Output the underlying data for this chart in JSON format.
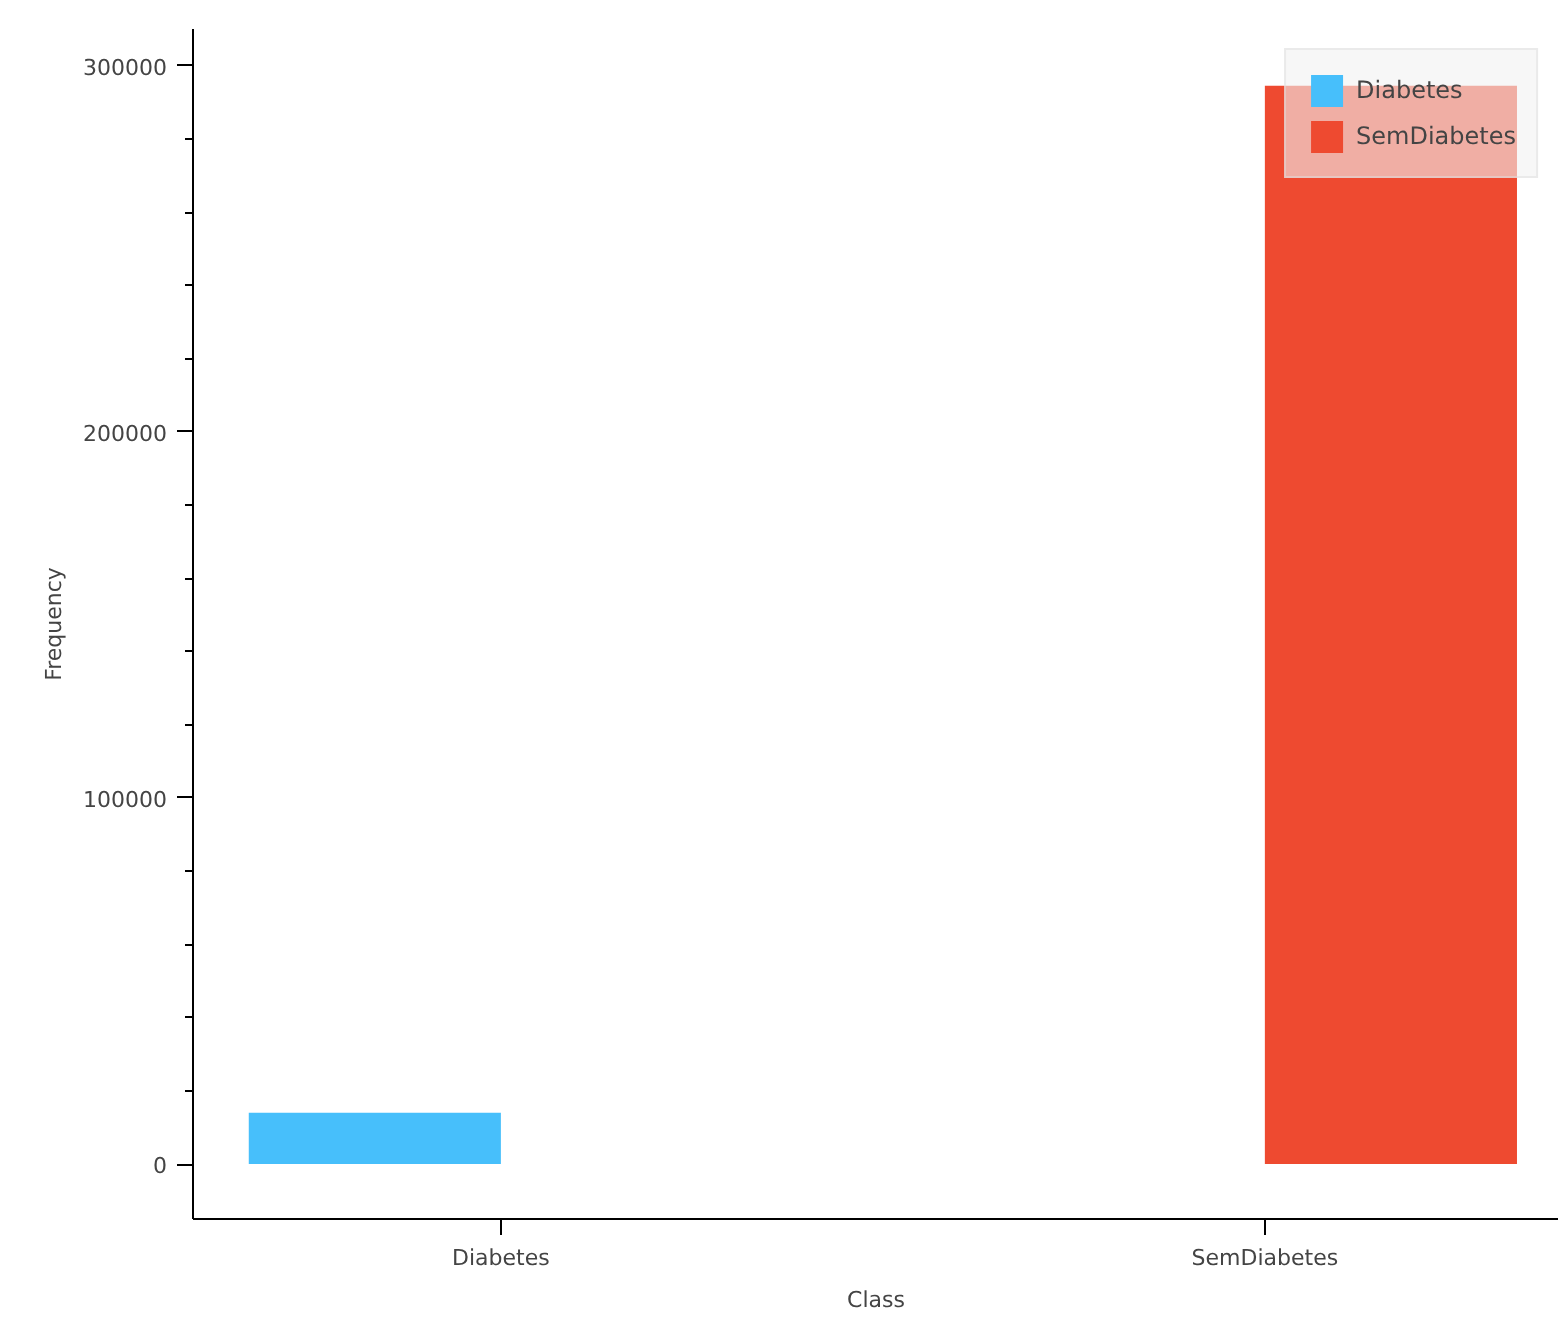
{
  "chart_data": {
    "type": "bar",
    "xlabel": "Class",
    "ylabel": "Frequency",
    "categories": [
      "Diabetes",
      "SemDiabetes"
    ],
    "series": [
      {
        "name": "Diabetes",
        "color": "#47bffb",
        "values": [
          14000,
          null
        ]
      },
      {
        "name": "SemDiabetes",
        "color": "#ee4a30",
        "values": [
          null,
          294500
        ]
      }
    ],
    "ylim": [
      -15000,
      310000
    ],
    "yticks": [
      0,
      100000,
      200000,
      300000
    ],
    "grid": false,
    "legend": "top right"
  }
}
